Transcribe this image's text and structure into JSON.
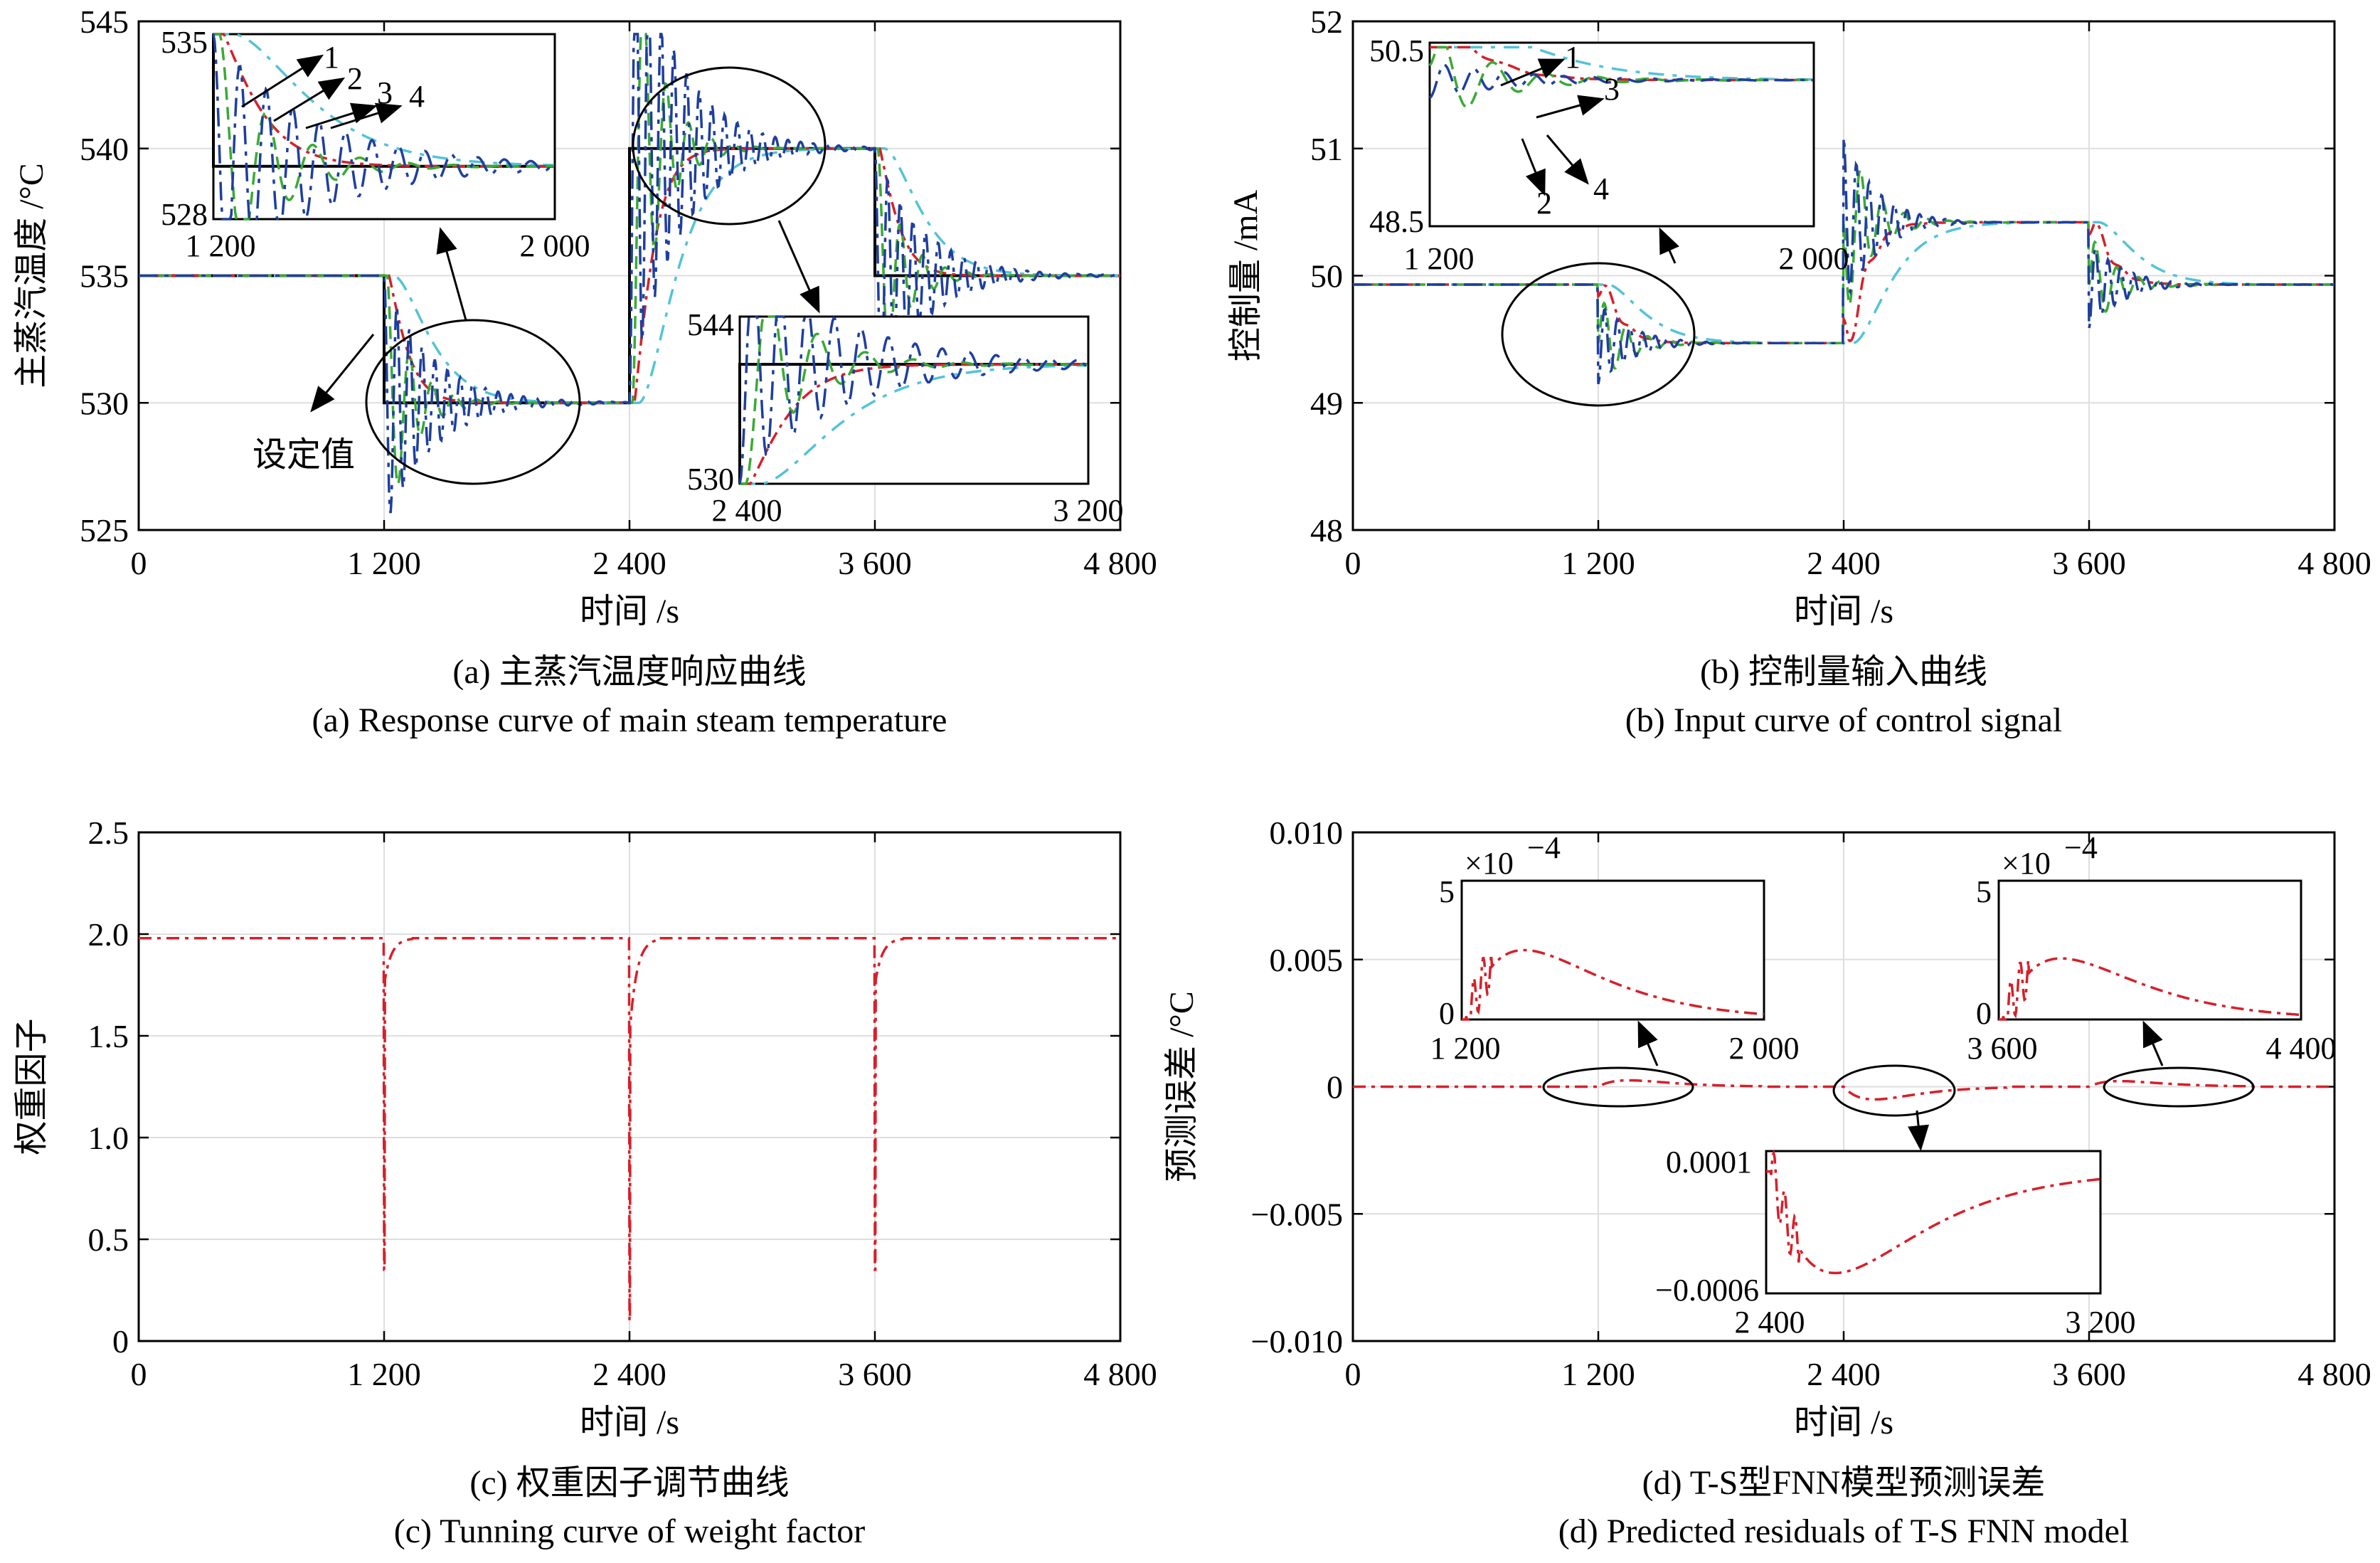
{
  "colors": {
    "setpoint": "#000000",
    "curve1": "#1f3f9e",
    "curve2": "#3aaa35",
    "curve3": "#d6202a",
    "curve4": "#52c3d8",
    "grid": "#dedede"
  },
  "chart_data": [
    {
      "id": "a",
      "type": "line",
      "ylabel": "主蒸汽温度 /°C",
      "xlabel": "时间 /s",
      "caption_cn": "(a) 主蒸汽温度响应曲线",
      "caption_en": "(a) Response curve of main steam temperature",
      "xlim": [
        0,
        4800
      ],
      "ylim": [
        525,
        545
      ],
      "xticks": [
        "0",
        "1 200",
        "2 400",
        "3 600",
        "4 800"
      ],
      "yticks": [
        "525",
        "530",
        "535",
        "540",
        "545"
      ],
      "grid": true,
      "setpoint": {
        "label": "设定值",
        "steps": [
          [
            0,
            535
          ],
          [
            1200,
            530
          ],
          [
            2400,
            540
          ],
          [
            3600,
            535
          ],
          [
            4800,
            535
          ]
        ]
      },
      "series_labels": [
        "1",
        "2",
        "3",
        "4"
      ],
      "curve_model": {
        "frequency": [
          0.032,
          0.021,
          0.0,
          0.0
        ],
        "decay": [
          140,
          95,
          70,
          140
        ],
        "overshoot": [
          0.85,
          0.6,
          0.0,
          0.0
        ]
      },
      "insets": [
        {
          "xrange": [
            "1 200",
            "2 000"
          ],
          "yrange": [
            "528",
            "535"
          ]
        },
        {
          "xrange": [
            "2 400",
            "3 200"
          ],
          "yrange": [
            "530",
            "544"
          ]
        }
      ]
    },
    {
      "id": "b",
      "type": "line",
      "ylabel": "控制量 /mA",
      "xlabel": "时间 /s",
      "caption_cn": "(b) 控制量输入曲线",
      "caption_en": "(b) Input curve of control signal",
      "xlim": [
        0,
        4800
      ],
      "ylim": [
        48,
        52
      ],
      "xticks": [
        "0",
        "1 200",
        "2 400",
        "3 600",
        "4 800"
      ],
      "yticks": [
        "48",
        "49",
        "50",
        "51",
        "52"
      ],
      "grid": true,
      "levels": [
        [
          0,
          49.93
        ],
        [
          1200,
          49.47
        ],
        [
          2400,
          50.42
        ],
        [
          3600,
          49.93
        ]
      ],
      "series_labels": [
        "1",
        "3",
        "2",
        "4"
      ],
      "insets": [
        {
          "xrange": [
            "1 200",
            "2 000"
          ],
          "yrange": [
            "48.5",
            "50.5"
          ]
        }
      ]
    },
    {
      "id": "c",
      "type": "line",
      "ylabel": "权重因子",
      "xlabel": "时间 /s",
      "caption_cn": "(c) 权重因子调节曲线",
      "caption_en": "(c) Tunning curve of weight factor",
      "xlim": [
        0,
        4800
      ],
      "ylim": [
        0,
        2.5
      ],
      "xticks": [
        "0",
        "1 200",
        "2 400",
        "3 600",
        "4 800"
      ],
      "yticks": [
        "0",
        "0.5",
        "1.0",
        "1.5",
        "2.0",
        "2.5"
      ],
      "grid": true,
      "baseline": 1.98,
      "dips": [
        {
          "x": 1200,
          "min": 0.35,
          "after": 1.75
        },
        {
          "x": 2400,
          "min": 0.1,
          "after": 1.5
        },
        {
          "x": 3600,
          "min": 0.35,
          "after": 1.75
        }
      ]
    },
    {
      "id": "d",
      "type": "line",
      "ylabel": "预测误差 /°C",
      "xlabel": "时间 /s",
      "caption_cn": "(d) T-S型FNN模型预测误差",
      "caption_en": "(d) Predicted residuals of T-S FNN model",
      "xlim": [
        0,
        4800
      ],
      "ylim": [
        -0.01,
        0.01
      ],
      "xticks": [
        "0",
        "1 200",
        "2 400",
        "3 600",
        "4 800"
      ],
      "yticks": [
        "−0.010",
        "−0.005",
        "0",
        "0.005",
        "0.010"
      ],
      "grid": true,
      "insets": [
        {
          "xrange": [
            "1 200",
            "2 000"
          ],
          "yrange": [
            "0",
            "5"
          ],
          "exponent": "×10",
          "exp_power": "−4"
        },
        {
          "xrange": [
            "3 600",
            "4 400"
          ],
          "yrange": [
            "0",
            "5"
          ],
          "exponent": "×10",
          "exp_power": "−4"
        },
        {
          "xrange": [
            "2 400",
            "3 200"
          ],
          "yrange": [
            "−0.0006",
            "0.0001"
          ]
        }
      ]
    }
  ]
}
